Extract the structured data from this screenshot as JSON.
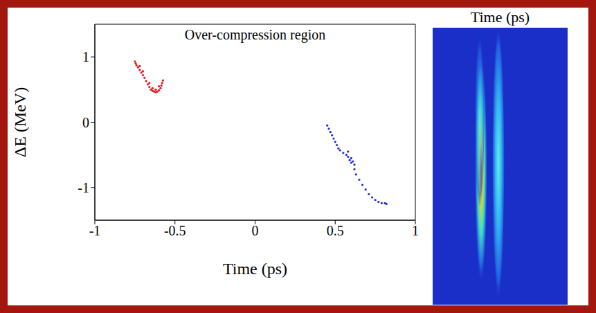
{
  "chart_data": {
    "type": "scatter",
    "annotation": "Over-compression region",
    "x_label": "Time (ps)",
    "y_label": "ΔE (MeV)",
    "xlim": [
      -1,
      1
    ],
    "ylim": [
      -1.5,
      1.5
    ],
    "xticks": [
      -1,
      -0.5,
      0,
      0.5,
      1
    ],
    "yticks": [
      -1,
      0,
      1
    ],
    "grid": false,
    "series": [
      {
        "color": "#e8141c",
        "x": [
          -0.75,
          -0.745,
          -0.74,
          -0.73,
          -0.72,
          -0.71,
          -0.7,
          -0.69,
          -0.68,
          -0.67,
          -0.66,
          -0.65,
          -0.64,
          -0.63,
          -0.62,
          -0.61,
          -0.6,
          -0.59,
          -0.585,
          -0.58,
          -0.575,
          -0.6,
          -0.62,
          -0.64,
          -0.66,
          -0.72,
          -0.7
        ],
        "values": [
          0.93,
          0.9,
          0.87,
          0.84,
          0.8,
          0.76,
          0.72,
          0.68,
          0.63,
          0.58,
          0.54,
          0.5,
          0.48,
          0.47,
          0.46,
          0.47,
          0.49,
          0.52,
          0.56,
          0.6,
          0.64,
          0.55,
          0.5,
          0.52,
          0.6,
          0.86,
          0.78
        ]
      },
      {
        "color": "#1f2ee0",
        "x": [
          0.45,
          0.46,
          0.47,
          0.48,
          0.49,
          0.5,
          0.51,
          0.52,
          0.53,
          0.55,
          0.57,
          0.58,
          0.59,
          0.6,
          0.61,
          0.62,
          0.6,
          0.58,
          0.62,
          0.63,
          0.65,
          0.67,
          0.69,
          0.71,
          0.73,
          0.75,
          0.77,
          0.79,
          0.81,
          0.82
        ],
        "values": [
          -0.05,
          -0.1,
          -0.15,
          -0.2,
          -0.25,
          -0.3,
          -0.35,
          -0.4,
          -0.43,
          -0.47,
          -0.5,
          -0.53,
          -0.58,
          -0.62,
          -0.6,
          -0.65,
          -0.55,
          -0.45,
          -0.72,
          -0.8,
          -0.88,
          -0.96,
          -1.03,
          -1.1,
          -1.15,
          -1.19,
          -1.22,
          -1.24,
          -1.24,
          -1.25
        ]
      }
    ]
  },
  "image": {
    "title": "Time (ps)"
  }
}
